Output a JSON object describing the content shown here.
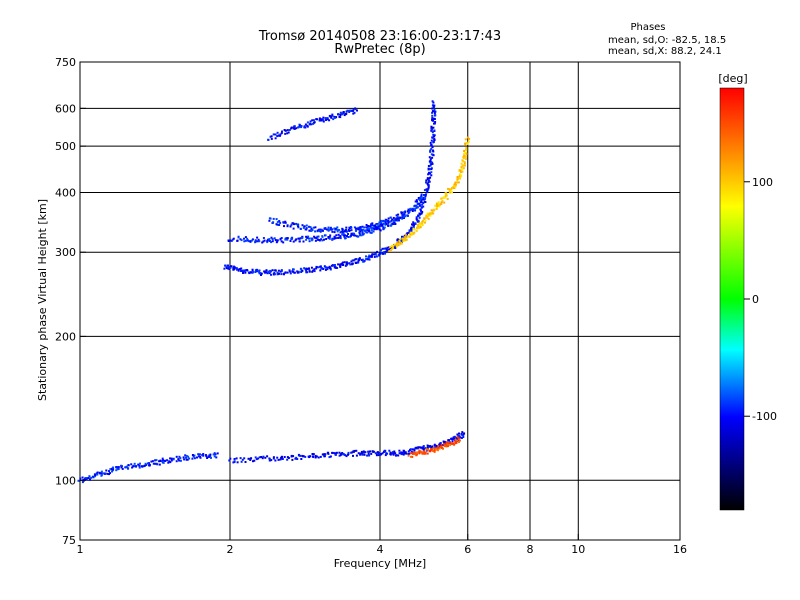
{
  "chart_data": {
    "type": "scatter",
    "title": "Tromsø 20140508 23:16:00-23:17:43",
    "subtitle": "RwPretec (8p)",
    "xlabel": "Frequency [MHz]",
    "ylabel": "Stationary phase Virtual Height [km]",
    "xscale": "log",
    "yscale": "log",
    "xlim": [
      1,
      16
    ],
    "ylim": [
      75,
      750
    ],
    "x_ticks": [
      1,
      2,
      4,
      6,
      8,
      10,
      16
    ],
    "y_ticks": [
      75,
      100,
      200,
      300,
      400,
      500,
      600,
      750
    ],
    "x_gridlines": [
      2,
      4,
      6,
      8,
      10
    ],
    "y_gridlines": [
      100,
      200,
      300,
      400,
      500,
      600
    ],
    "grid": true,
    "stats": {
      "heading": "Phases",
      "line_o": "mean, sd,O: -82.5, 18.5",
      "line_x": "mean, sd,X: 88.2, 24.1"
    },
    "colorbar": {
      "label": "[deg]",
      "range": [
        -180,
        180
      ],
      "ticks": [
        100,
        0,
        -100
      ],
      "colors": [
        "#ff0000",
        "#ffaa00",
        "#ffff00",
        "#00ff00",
        "#00ffff",
        "#0000ff",
        "#000000"
      ]
    },
    "series": [
      {
        "kind": "o-trace-F2-lower",
        "phase": -100,
        "points": [
          [
            1.95,
            280
          ],
          [
            2.1,
            275
          ],
          [
            2.3,
            272
          ],
          [
            2.5,
            272
          ],
          [
            2.8,
            274
          ],
          [
            3.1,
            278
          ],
          [
            3.4,
            283
          ],
          [
            3.7,
            290
          ],
          [
            4.0,
            298
          ],
          [
            4.3,
            310
          ],
          [
            4.6,
            330
          ],
          [
            4.8,
            360
          ],
          [
            4.95,
            400
          ],
          [
            5.05,
            450
          ],
          [
            5.1,
            500
          ],
          [
            5.12,
            560
          ],
          [
            5.13,
            620
          ]
        ]
      },
      {
        "kind": "o-trace-F2-upper",
        "phase": -95,
        "points": [
          [
            2.0,
            320
          ],
          [
            2.3,
            318
          ],
          [
            2.6,
            318
          ],
          [
            2.9,
            320
          ],
          [
            3.2,
            322
          ],
          [
            3.5,
            325
          ],
          [
            3.8,
            332
          ],
          [
            4.1,
            340
          ],
          [
            4.4,
            352
          ],
          [
            4.7,
            372
          ],
          [
            4.9,
            395
          ]
        ]
      },
      {
        "kind": "o-trace-oblique",
        "phase": -95,
        "points": [
          [
            2.4,
            350
          ],
          [
            2.7,
            340
          ],
          [
            3.0,
            335
          ],
          [
            3.3,
            334
          ],
          [
            3.6,
            336
          ],
          [
            3.9,
            342
          ],
          [
            4.2,
            350
          ],
          [
            4.5,
            365
          ]
        ]
      },
      {
        "kind": "o-trace-top",
        "phase": -100,
        "points": [
          [
            2.4,
            520
          ],
          [
            2.7,
            545
          ],
          [
            3.0,
            565
          ],
          [
            3.3,
            580
          ],
          [
            3.6,
            595
          ]
        ]
      },
      {
        "kind": "o-trace-E",
        "phase": -105,
        "points": [
          [
            2.0,
            110
          ],
          [
            2.4,
            111
          ],
          [
            2.8,
            112
          ],
          [
            3.2,
            113
          ],
          [
            3.6,
            114
          ],
          [
            4.0,
            114
          ],
          [
            4.4,
            114
          ],
          [
            4.8,
            116
          ],
          [
            5.2,
            118
          ],
          [
            5.6,
            121
          ],
          [
            5.9,
            125
          ]
        ]
      },
      {
        "kind": "o-trace-low",
        "phase": -95,
        "points": [
          [
            1.0,
            100
          ],
          [
            1.1,
            103
          ],
          [
            1.2,
            106
          ],
          [
            1.35,
            108
          ],
          [
            1.5,
            110
          ],
          [
            1.7,
            112
          ],
          [
            1.9,
            113
          ]
        ]
      },
      {
        "kind": "x-trace-F2",
        "phase": 100,
        "points": [
          [
            4.2,
            305
          ],
          [
            4.5,
            320
          ],
          [
            4.8,
            340
          ],
          [
            5.1,
            365
          ],
          [
            5.4,
            390
          ],
          [
            5.7,
            420
          ],
          [
            5.9,
            460
          ],
          [
            6.0,
            520
          ]
        ]
      },
      {
        "kind": "x-trace-E",
        "phase": 150,
        "points": [
          [
            4.6,
            113
          ],
          [
            5.0,
            115
          ],
          [
            5.4,
            118
          ],
          [
            5.8,
            122
          ]
        ]
      }
    ]
  }
}
